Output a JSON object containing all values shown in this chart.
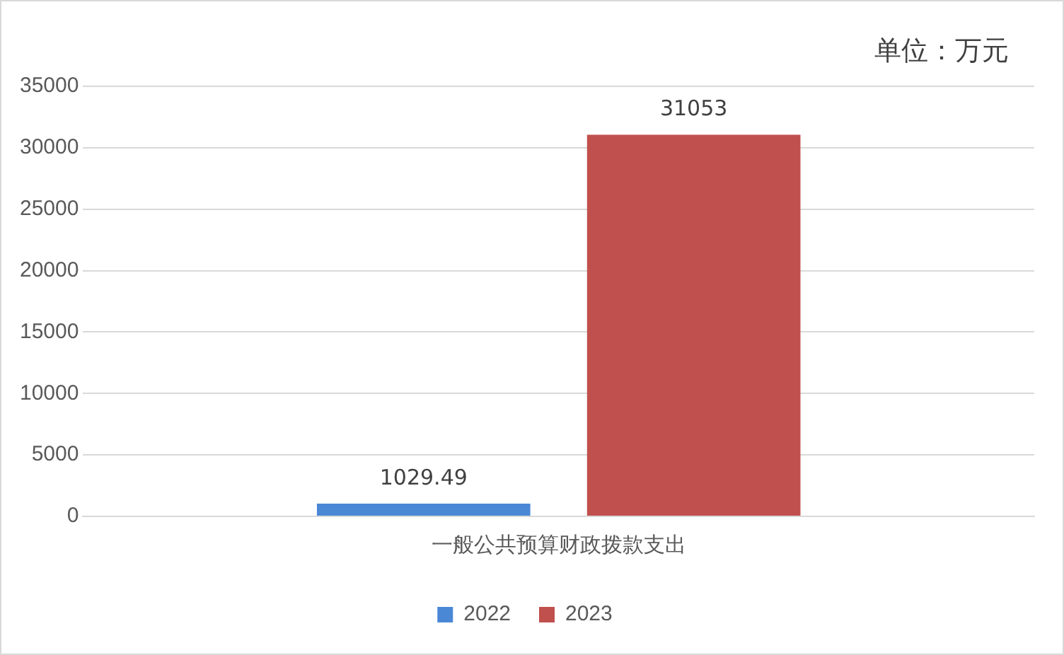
{
  "chart_data": {
    "type": "bar",
    "categories": [
      "一般公共预算财政拨款支出"
    ],
    "series": [
      {
        "name": "2022",
        "color": "#4a88d6",
        "values": [
          1029.49
        ]
      },
      {
        "name": "2023",
        "color": "#c0504d",
        "values": [
          31053
        ]
      }
    ],
    "ylim": [
      0,
      35000
    ],
    "yticks": [
      0,
      5000,
      10000,
      15000,
      20000,
      25000,
      30000,
      35000
    ],
    "grid": "y",
    "legend": "bottom",
    "data_labels": true,
    "annotations": [
      "单位：万元"
    ]
  }
}
